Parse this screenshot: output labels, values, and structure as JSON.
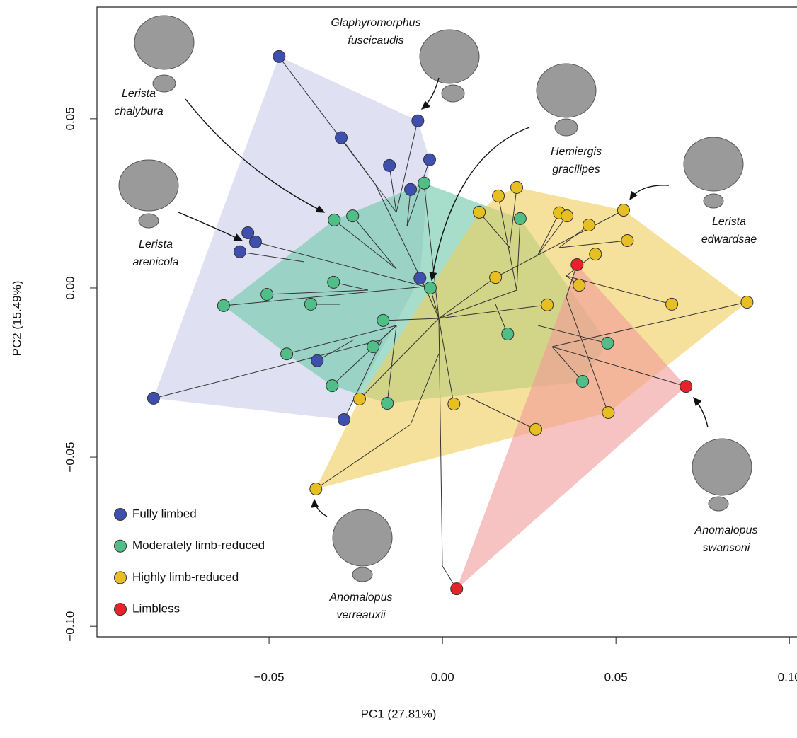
{
  "chart_data": {
    "type": "scatter",
    "x_label": "PC1 (27.81%)",
    "y_label": "PC2 (15.49%)",
    "xlim": [
      -0.0996,
      0.1022
    ],
    "ylim": [
      -0.1031,
      0.0851
    ],
    "xticks": [
      {
        "value": -0.05,
        "label": "−0.05"
      },
      {
        "value": 0,
        "label": "0.00"
      },
      {
        "value": 0.05,
        "label": "0.05"
      },
      {
        "value": 0.1,
        "label": "0.10"
      }
    ],
    "yticks": [
      {
        "value": -0.1,
        "label": "−0.10"
      },
      {
        "value": -0.05,
        "label": "−0.05"
      },
      {
        "value": 0,
        "label": "0.00"
      },
      {
        "value": 0.05,
        "label": "0.05"
      }
    ],
    "legend": "bottom-left",
    "convex_hulls": true,
    "series": [
      {
        "name": "Fully limbed",
        "color": "#3f4fae",
        "hull_color": "#c9cbe8",
        "x": [
          -0.0471,
          -0.0071,
          -0.0292,
          -0.0153,
          -0.0037,
          -0.0092,
          -0.0561,
          -0.0539,
          -0.0584,
          -0.0065,
          -0.0361,
          -0.0284,
          -0.0833
        ],
        "values": [
          0.0684,
          0.0494,
          0.0444,
          0.0362,
          0.0379,
          0.0291,
          0.0163,
          0.0136,
          0.0107,
          0.0029,
          -0.0215,
          -0.0389,
          -0.0326
        ]
      },
      {
        "name": "Moderately limb-reduced",
        "color": "#4fbf87",
        "hull_color": "#6cc8a8",
        "x": [
          -0.0053,
          -0.0312,
          -0.0259,
          0.0224,
          -0.0631,
          -0.0506,
          -0.0314,
          -0.038,
          -0.0035,
          -0.0171,
          -0.02,
          -0.0449,
          -0.0318,
          -0.0159,
          0.0188,
          0.0476,
          0.0404
        ],
        "values": [
          0.031,
          0.0201,
          0.0213,
          0.0205,
          -0.0052,
          -0.0019,
          0.0017,
          -0.0048,
          0.0,
          -0.0096,
          -0.0174,
          -0.0195,
          -0.0289,
          -0.0341,
          -0.0136,
          -0.0163,
          -0.0276
        ]
      },
      {
        "name": "Highly limb-reduced",
        "color": "#e8bf22",
        "hull_color": "#efcd5a",
        "x": [
          0.0161,
          0.0214,
          0.0106,
          0.0337,
          0.0359,
          0.0522,
          0.0422,
          0.0533,
          0.0441,
          0.0153,
          0.0394,
          0.0302,
          0.0661,
          0.0878,
          -0.0239,
          0.0033,
          0.0269,
          0.0478,
          -0.0365
        ],
        "values": [
          0.0272,
          0.0297,
          0.0224,
          0.0222,
          0.0213,
          0.023,
          0.0186,
          0.014,
          0.01,
          0.0031,
          0.0008,
          -0.005,
          -0.0048,
          -0.0042,
          -0.0328,
          -0.0343,
          -0.0418,
          -0.0368,
          -0.0594
        ]
      },
      {
        "name": "Limbless",
        "color": "#e8222a",
        "hull_color": "#f29a9a",
        "x": [
          0.0388,
          0.0702,
          0.0041
        ],
        "values": [
          0.0069,
          -0.0291,
          -0.0889
        ]
      }
    ],
    "annotations": [
      {
        "lines": [
          "Glaphyromorphus",
          "fuscicaudis"
        ]
      },
      {
        "lines": [
          "Lerista",
          "chalybura"
        ]
      },
      {
        "lines": [
          "Hemiergis",
          "gracilipes"
        ]
      },
      {
        "lines": [
          "Lerista",
          "arenicola"
        ]
      },
      {
        "lines": [
          "Lerista",
          "edwardsae"
        ]
      },
      {
        "lines": [
          "Anomalopus",
          "swansoni"
        ]
      },
      {
        "lines": [
          "Anomalopus",
          "verreauxii"
        ]
      }
    ]
  }
}
